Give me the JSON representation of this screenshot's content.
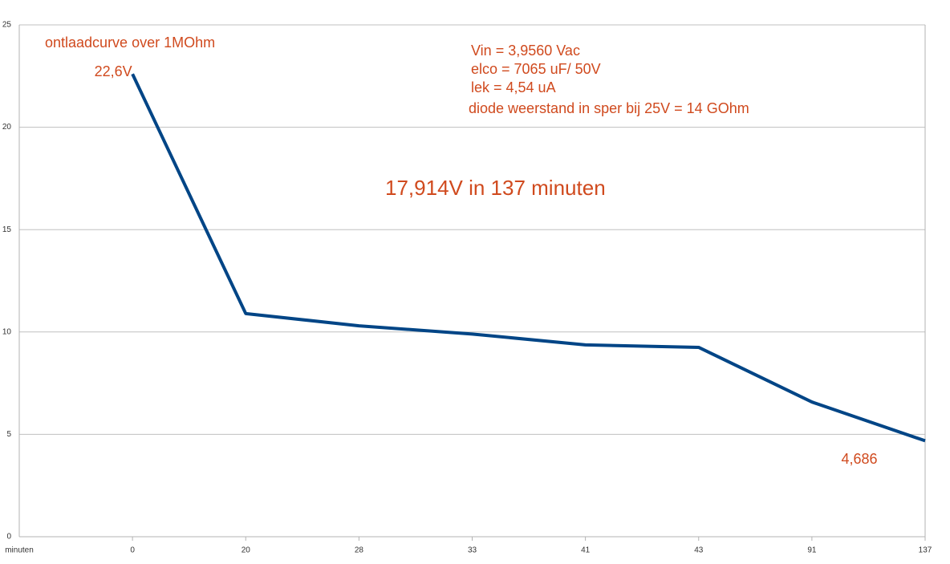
{
  "chart_data": {
    "type": "line",
    "title": "ontlaadcurve over 1MOhm",
    "x_label": "minuten",
    "annotations": [
      "Vin = 3,9560 Vac",
      "elco = 7065 uF/ 50V",
      "lek = 4,54 uA",
      "diode  weerstand in sper bij 25V = 14 GOhm",
      "17,914V in 137 minuten"
    ],
    "categories": [
      "0",
      "20",
      "28",
      "33",
      "41",
      "43",
      "91",
      "137"
    ],
    "series": [
      {
        "name": null,
        "color": "#004586",
        "values": [
          22.6,
          10.9,
          10.3,
          9.9,
          9.37,
          9.25,
          6.58,
          4.686
        ],
        "value_labels": [
          "22,6V",
          null,
          null,
          null,
          null,
          null,
          null,
          "4,686"
        ]
      }
    ],
    "ylim": [
      0,
      25
    ],
    "yticks": [
      0,
      5,
      10,
      15,
      20,
      25
    ],
    "grid": true,
    "text_color": "#d04a1e"
  }
}
